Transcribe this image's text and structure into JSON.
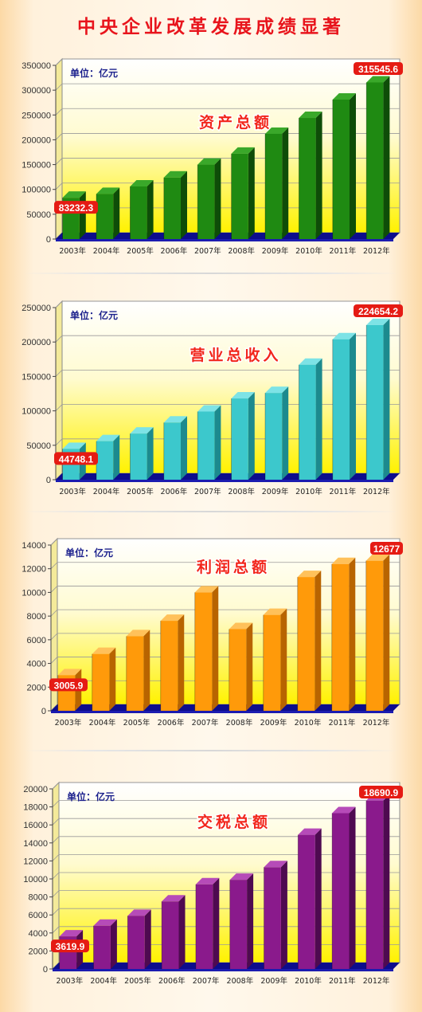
{
  "page": {
    "title": "中央企业改革发展成绩显著"
  },
  "chart_data": [
    {
      "type": "bar",
      "title": "资产总额",
      "unit": "单位：亿元",
      "categories": [
        "2003年",
        "2004年",
        "2005年",
        "2006年",
        "2007年",
        "2008年",
        "2009年",
        "2010年",
        "2011年",
        "2012年"
      ],
      "values": [
        83232.3,
        91000,
        106000,
        124000,
        150000,
        172000,
        212000,
        244000,
        281000,
        315545.6
      ],
      "ylim": [
        0,
        350000
      ],
      "yticks": [
        0,
        50000,
        100000,
        150000,
        200000,
        250000,
        300000,
        350000
      ],
      "grid": true,
      "bar_color": "#1f8a12",
      "bar_side_color": "#0e4d08",
      "bar_top_color": "#3aa82a",
      "first_label": "83232.3",
      "last_label": "315545.6"
    },
    {
      "type": "bar",
      "title": "营业总收入",
      "unit": "单位：亿元",
      "categories": [
        "2003年",
        "2004年",
        "2005年",
        "2006年",
        "2007年",
        "2008年",
        "2009年",
        "2010年",
        "2011年",
        "2012年"
      ],
      "values": [
        44748.1,
        56000,
        67000,
        83000,
        99000,
        118000,
        126000,
        167000,
        204000,
        224654.2
      ],
      "ylim": [
        0,
        250000
      ],
      "yticks": [
        0,
        50000,
        100000,
        150000,
        200000,
        250000
      ],
      "grid": true,
      "bar_color": "#3cc8cc",
      "bar_side_color": "#1c8a8e",
      "bar_top_color": "#7de3e6",
      "first_label": "44748.1",
      "last_label": "224654.2"
    },
    {
      "type": "bar",
      "title": "利润总额",
      "unit": "单位：亿元",
      "categories": [
        "2003年",
        "2004年",
        "2005年",
        "2006年",
        "2007年",
        "2008年",
        "2009年",
        "2010年",
        "2011年",
        "2012年"
      ],
      "values": [
        3005.9,
        4800,
        6300,
        7600,
        10000,
        6900,
        8100,
        11300,
        12400,
        12677
      ],
      "ylim": [
        0,
        14000
      ],
      "yticks": [
        0,
        2000,
        4000,
        6000,
        8000,
        10000,
        12000,
        14000
      ],
      "grid": true,
      "bar_color": "#ff9a0a",
      "bar_side_color": "#b86400",
      "bar_top_color": "#ffc15a",
      "first_label": "3005.9",
      "last_label": "12677"
    },
    {
      "type": "bar",
      "title": "交税总额",
      "unit": "单位：亿元",
      "categories": [
        "2003年",
        "2004年",
        "2005年",
        "2006年",
        "2007年",
        "2008年",
        "2009年",
        "2010年",
        "2011年",
        "2012年"
      ],
      "values": [
        3619.9,
        4800,
        5900,
        7500,
        9400,
        9900,
        11300,
        14900,
        17300,
        18690.9
      ],
      "ylim": [
        0,
        20000
      ],
      "yticks": [
        0,
        2000,
        4000,
        6000,
        8000,
        10000,
        12000,
        14000,
        16000,
        18000,
        20000
      ],
      "grid": true,
      "bar_color": "#8a1a8c",
      "bar_side_color": "#4e0a50",
      "bar_top_color": "#b64bb8",
      "first_label": "3619.9",
      "last_label": "18690.9"
    }
  ]
}
